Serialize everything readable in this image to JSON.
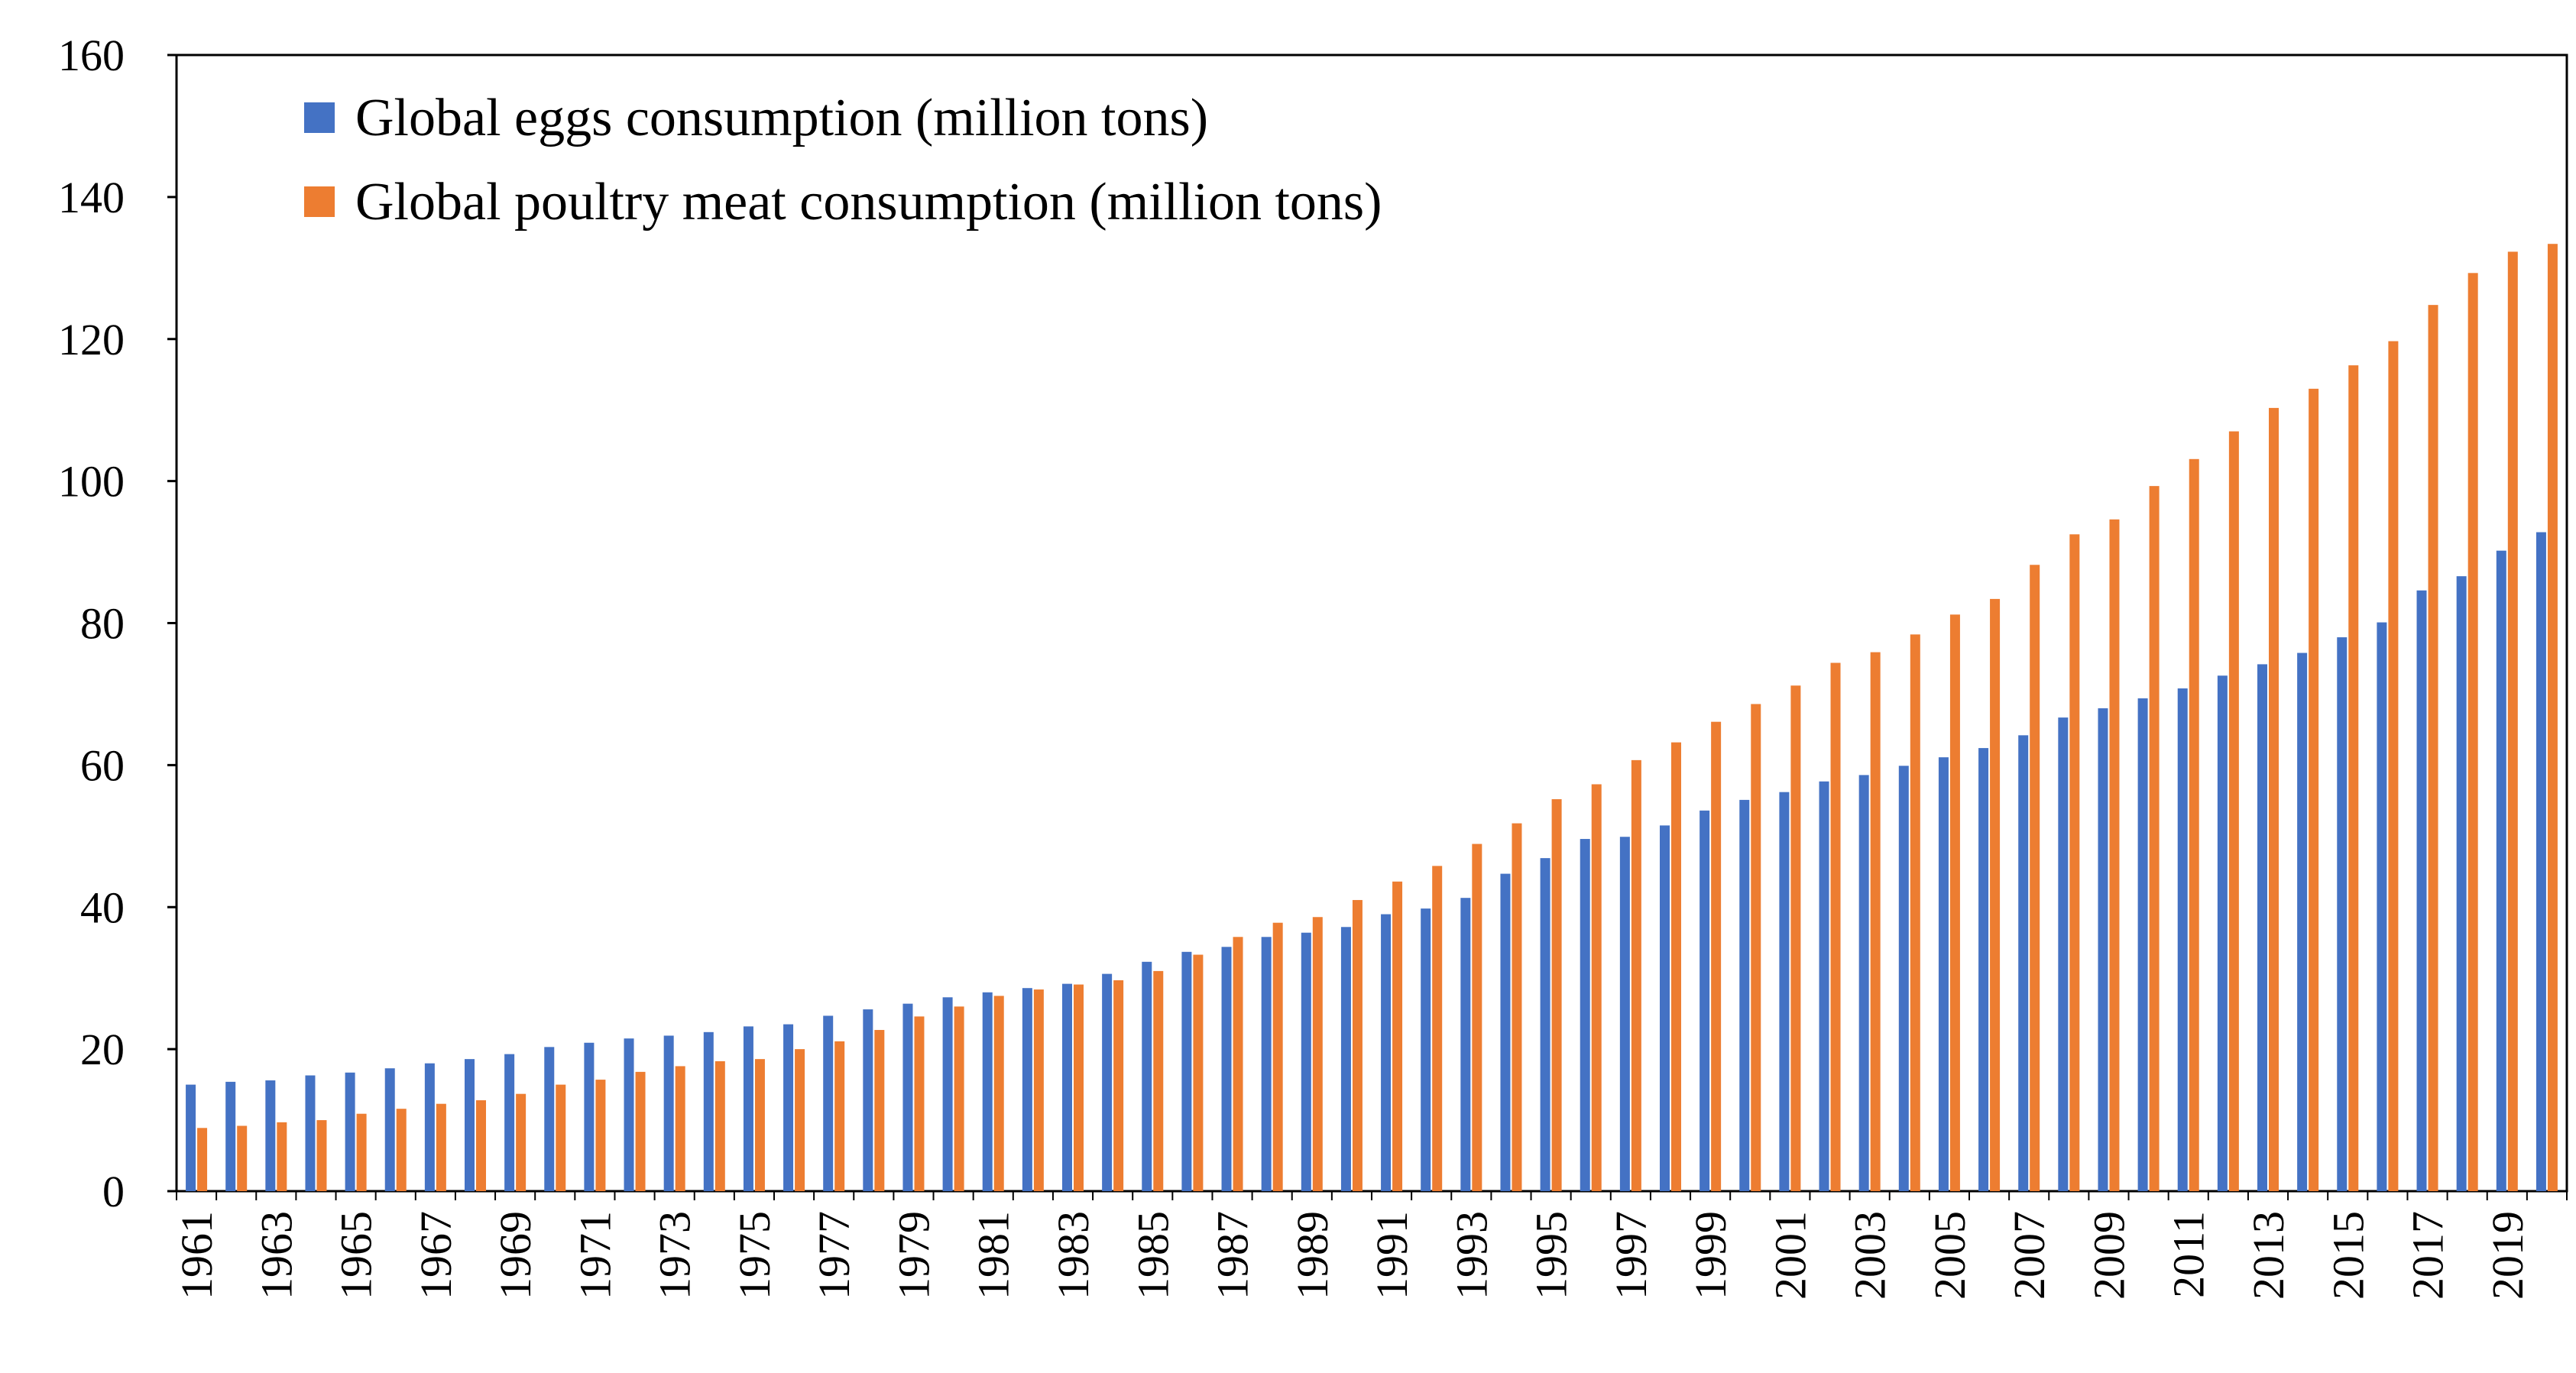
{
  "chart_data": {
    "type": "bar",
    "title": "",
    "xlabel": "",
    "ylabel": "",
    "ylim": [
      0,
      160
    ],
    "yticks": [
      0,
      20,
      40,
      60,
      80,
      100,
      120,
      140,
      160
    ],
    "grid": false,
    "legend_position": "top-left",
    "categories": [
      "1961",
      "1962",
      "1963",
      "1964",
      "1965",
      "1966",
      "1967",
      "1968",
      "1969",
      "1970",
      "1971",
      "1972",
      "1973",
      "1974",
      "1975",
      "1976",
      "1977",
      "1978",
      "1979",
      "1980",
      "1981",
      "1982",
      "1983",
      "1984",
      "1985",
      "1986",
      "1987",
      "1988",
      "1989",
      "1990",
      "1991",
      "1992",
      "1993",
      "1994",
      "1995",
      "1996",
      "1997",
      "1998",
      "1999",
      "2000",
      "2001",
      "2002",
      "2003",
      "2004",
      "2005",
      "2006",
      "2007",
      "2008",
      "2009",
      "2010",
      "2011",
      "2012",
      "2013",
      "2014",
      "2015",
      "2016",
      "2017",
      "2018",
      "2019",
      "2020"
    ],
    "tick_labels": [
      "1961",
      "1963",
      "1965",
      "1967",
      "1969",
      "1971",
      "1973",
      "1975",
      "1977",
      "1979",
      "1981",
      "1983",
      "1985",
      "1987",
      "1989",
      "1991",
      "1993",
      "1995",
      "1997",
      "1999",
      "2001",
      "2003",
      "2005",
      "2007",
      "2009",
      "2011",
      "2013",
      "2015",
      "2017",
      "2019"
    ],
    "series": [
      {
        "name": "Global eggs consumption (million tons)",
        "color": "#4472C4",
        "values": [
          15.0,
          15.4,
          15.6,
          16.3,
          16.7,
          17.3,
          18.0,
          18.6,
          19.3,
          20.3,
          20.9,
          21.5,
          21.9,
          22.4,
          23.2,
          23.5,
          24.7,
          25.6,
          26.4,
          27.3,
          28.0,
          28.6,
          29.2,
          30.6,
          32.3,
          33.7,
          34.4,
          35.8,
          36.4,
          37.2,
          39.0,
          39.8,
          41.3,
          44.7,
          46.9,
          49.6,
          49.9,
          51.5,
          53.6,
          55.1,
          56.2,
          57.7,
          58.6,
          59.9,
          61.1,
          62.4,
          64.2,
          66.7,
          68.0,
          69.4,
          70.8,
          72.6,
          74.2,
          75.8,
          78.0,
          80.1,
          84.6,
          86.6,
          90.2,
          92.8
        ]
      },
      {
        "name": "Global poultry meat consumption (million tons)",
        "color": "#ED7D31",
        "values": [
          8.9,
          9.2,
          9.7,
          10.0,
          10.9,
          11.6,
          12.3,
          12.8,
          13.7,
          15.0,
          15.7,
          16.8,
          17.6,
          18.3,
          18.6,
          20.0,
          21.1,
          22.7,
          24.6,
          26.0,
          27.5,
          28.4,
          29.1,
          29.7,
          31.0,
          33.3,
          35.8,
          37.8,
          38.6,
          41.0,
          43.6,
          45.8,
          48.9,
          51.8,
          55.2,
          57.3,
          60.7,
          63.2,
          66.1,
          68.6,
          71.2,
          74.4,
          75.9,
          78.4,
          81.2,
          83.4,
          88.2,
          92.5,
          94.6,
          99.3,
          103.1,
          107.0,
          110.3,
          113.0,
          116.3,
          119.7,
          124.8,
          129.3,
          132.3,
          133.4
        ]
      }
    ]
  }
}
